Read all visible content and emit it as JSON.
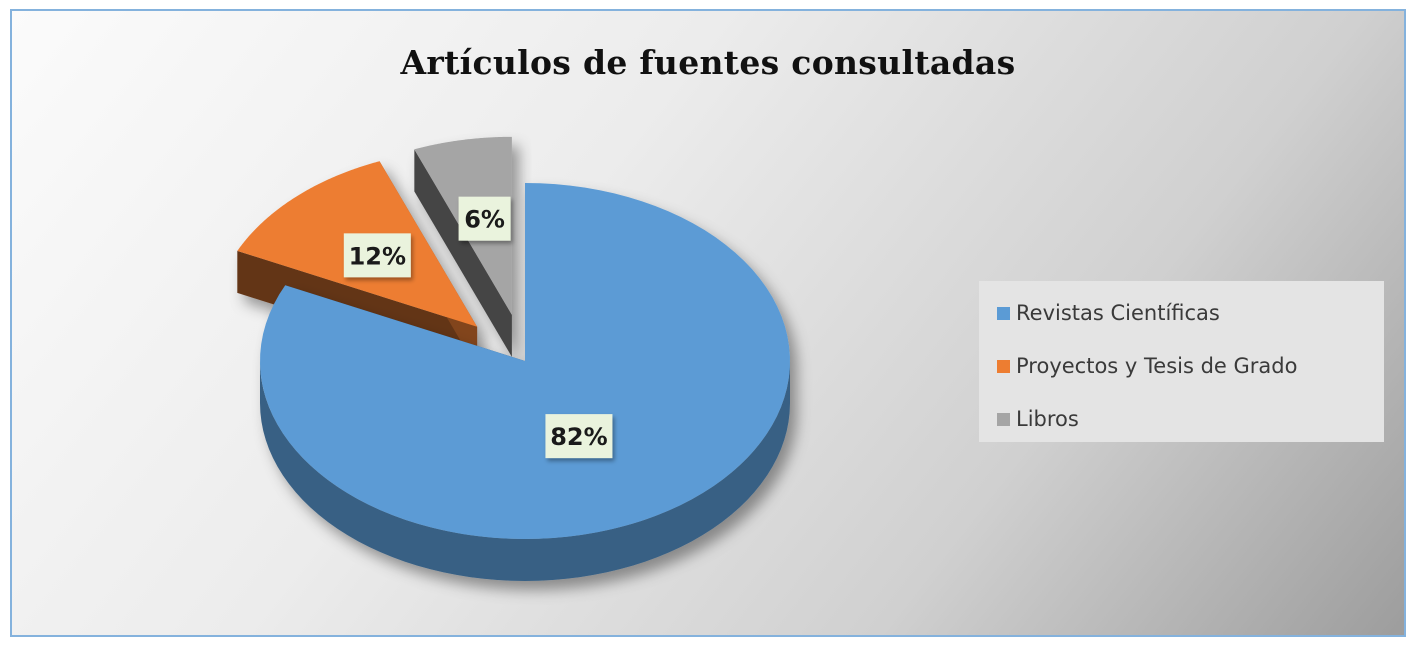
{
  "chart_data": {
    "type": "pie",
    "title": "Artículos de fuentes consultadas",
    "categories": [
      "Revistas Científicas",
      "Proyectos y Tesis de Grado",
      "Libros"
    ],
    "values": [
      82,
      12,
      6
    ],
    "data_labels": [
      "82%",
      "12%",
      "6%"
    ],
    "colors": [
      "#5b9bd5",
      "#ed7d31",
      "#a5a5a5"
    ],
    "exploded": [
      false,
      true,
      true
    ],
    "three_d": true,
    "legend_position": "right"
  }
}
